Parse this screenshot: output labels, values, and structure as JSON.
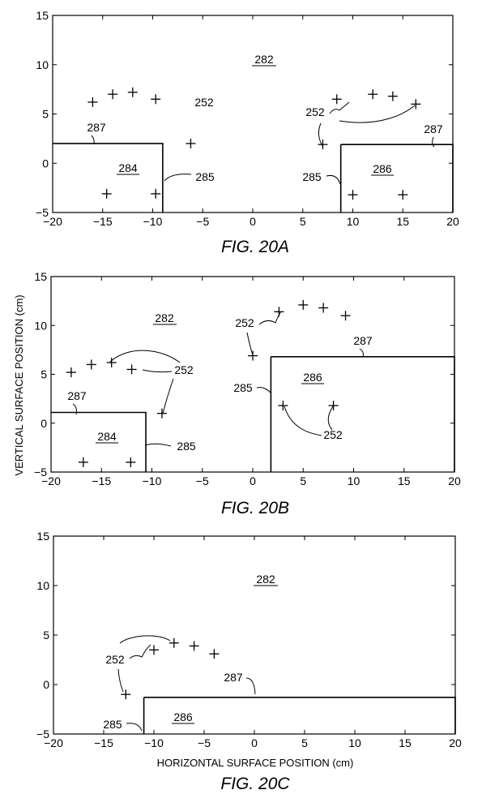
{
  "colors": {
    "ink": "#000000",
    "background": "#ffffff"
  },
  "chart_data": [
    {
      "type": "scatter",
      "title": "FIG. 20A",
      "xlabel": "",
      "ylabel": "",
      "xlim": [
        -20,
        20
      ],
      "ylim": [
        -5,
        15
      ],
      "x_ticks": [
        -20,
        -15,
        -10,
        -5,
        0,
        5,
        10,
        15,
        20
      ],
      "y_ticks": [
        -5,
        0,
        5,
        10,
        15
      ],
      "grid": false,
      "marker": "plus",
      "series": [
        {
          "points": [
            [
              -16,
              6.2
            ],
            [
              -14,
              7
            ],
            [
              -12,
              7.2
            ],
            [
              -9.7,
              6.5
            ],
            [
              -6.2,
              2
            ],
            [
              -14.6,
              -3.1
            ],
            [
              -9.7,
              -3.1
            ],
            [
              7,
              1.9
            ],
            [
              8.4,
              6.5
            ],
            [
              12,
              7
            ],
            [
              14,
              6.8
            ],
            [
              16.3,
              6
            ],
            [
              10,
              -3.2
            ],
            [
              15,
              -3.2
            ]
          ]
        }
      ],
      "regions": [
        {
          "label": "284",
          "x": [
            -20,
            -9
          ],
          "y": [
            -5,
            2
          ]
        },
        {
          "label": "286",
          "x": [
            8.8,
            20
          ],
          "y": [
            -5,
            1.9
          ]
        }
      ],
      "annotations": [
        "282",
        "252",
        "252",
        "287",
        "287",
        "285",
        "285"
      ]
    },
    {
      "type": "scatter",
      "title": "FIG. 20B",
      "xlabel": "",
      "ylabel": "VERTICAL SURFACE POSITION (cm)",
      "xlim": [
        -20,
        20
      ],
      "ylim": [
        -5,
        15
      ],
      "x_ticks": [
        -20,
        -15,
        -10,
        -5,
        0,
        5,
        10,
        15,
        20
      ],
      "y_ticks": [
        -5,
        0,
        5,
        10,
        15
      ],
      "grid": false,
      "marker": "plus",
      "series": [
        {
          "points": [
            [
              -18,
              5.2
            ],
            [
              -16,
              6
            ],
            [
              -14,
              6.2
            ],
            [
              -12,
              5.5
            ],
            [
              -9,
              1
            ],
            [
              -16.8,
              -4
            ],
            [
              -12.1,
              -4
            ],
            [
              0,
              6.9
            ],
            [
              2.6,
              11.4
            ],
            [
              5,
              12.1
            ],
            [
              7,
              11.8
            ],
            [
              9.2,
              11
            ],
            [
              3,
              1.8
            ],
            [
              8,
              1.8
            ]
          ]
        }
      ],
      "regions": [
        {
          "label": "284",
          "x": [
            -20,
            -10.6
          ],
          "y": [
            -5,
            1.1
          ]
        },
        {
          "label": "286",
          "x": [
            1.8,
            20
          ],
          "y": [
            -5,
            6.8
          ]
        }
      ],
      "annotations": [
        "282",
        "252",
        "252",
        "252",
        "287",
        "287",
        "285",
        "285"
      ]
    },
    {
      "type": "scatter",
      "title": "FIG. 20C",
      "xlabel": "HORIZONTAL SURFACE POSITION (cm)",
      "ylabel": "",
      "xlim": [
        -20,
        20
      ],
      "ylim": [
        -5,
        15
      ],
      "x_ticks": [
        -20,
        -15,
        -10,
        -5,
        0,
        5,
        10,
        15,
        20
      ],
      "y_ticks": [
        -5,
        0,
        5,
        10,
        15
      ],
      "grid": false,
      "marker": "plus",
      "series": [
        {
          "points": [
            [
              -12.8,
              -1
            ],
            [
              -10,
              3.5
            ],
            [
              -8,
              4.2
            ],
            [
              -6,
              3.9
            ],
            [
              -4,
              3.1
            ]
          ]
        }
      ],
      "regions": [
        {
          "label": "286",
          "x": [
            -11,
            20
          ],
          "y": [
            -5,
            -1.3
          ]
        }
      ],
      "annotations": [
        "282",
        "252",
        "287",
        "285"
      ]
    }
  ]
}
